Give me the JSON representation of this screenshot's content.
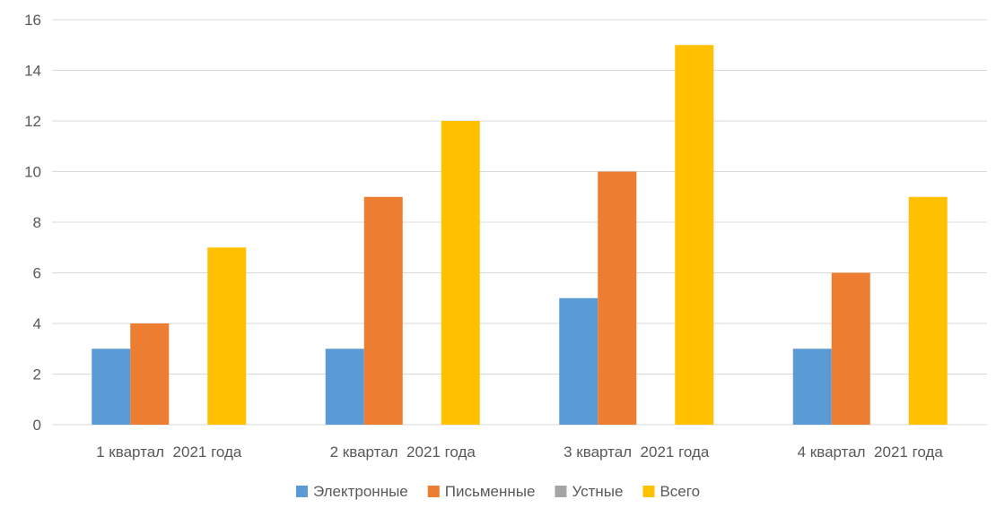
{
  "chart_data": {
    "type": "bar",
    "title": "",
    "xlabel": "",
    "ylabel": "",
    "categories": [
      "1 квартал  2021 года",
      "2 квартал  2021 года",
      "3 квартал  2021 года",
      "4 квартал  2021 года"
    ],
    "series": [
      {
        "name": "Электронные",
        "color": "#5b9bd5",
        "values": [
          3,
          3,
          5,
          3
        ]
      },
      {
        "name": "Письменные",
        "color": "#ed7d31",
        "values": [
          4,
          9,
          10,
          6
        ]
      },
      {
        "name": "Устные",
        "color": "#a5a5a5",
        "values": [
          0,
          0,
          0,
          0
        ]
      },
      {
        "name": "Всего",
        "color": "#ffc000",
        "values": [
          7,
          12,
          15,
          9
        ]
      }
    ],
    "ylim": [
      0,
      16
    ],
    "yticks": [
      0,
      2,
      4,
      6,
      8,
      10,
      12,
      14,
      16
    ],
    "grid": true,
    "legend_position": "bottom"
  }
}
